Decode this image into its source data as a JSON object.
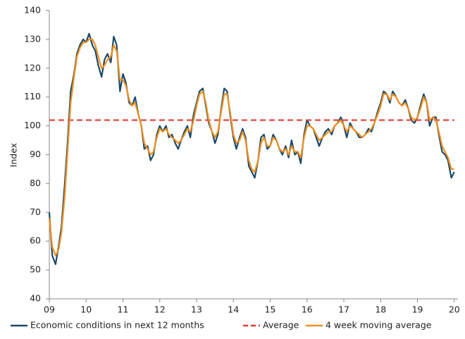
{
  "chart_data": {
    "type": "line",
    "y_label": "Index",
    "x": [
      2009.0,
      2009.08,
      2009.17,
      2009.25,
      2009.33,
      2009.42,
      2009.5,
      2009.58,
      2009.67,
      2009.75,
      2009.83,
      2009.92,
      2010.0,
      2010.08,
      2010.17,
      2010.25,
      2010.33,
      2010.42,
      2010.5,
      2010.58,
      2010.67,
      2010.75,
      2010.83,
      2010.92,
      2011.0,
      2011.08,
      2011.17,
      2011.25,
      2011.33,
      2011.42,
      2011.5,
      2011.58,
      2011.67,
      2011.75,
      2011.83,
      2011.92,
      2012.0,
      2012.08,
      2012.17,
      2012.25,
      2012.33,
      2012.42,
      2012.5,
      2012.58,
      2012.67,
      2012.75,
      2012.83,
      2012.92,
      2013.0,
      2013.08,
      2013.17,
      2013.25,
      2013.33,
      2013.42,
      2013.5,
      2013.58,
      2013.67,
      2013.75,
      2013.83,
      2013.92,
      2014.0,
      2014.08,
      2014.17,
      2014.25,
      2014.33,
      2014.42,
      2014.5,
      2014.58,
      2014.67,
      2014.75,
      2014.83,
      2014.92,
      2015.0,
      2015.08,
      2015.17,
      2015.25,
      2015.33,
      2015.42,
      2015.5,
      2015.58,
      2015.67,
      2015.75,
      2015.83,
      2015.92,
      2016.0,
      2016.08,
      2016.17,
      2016.25,
      2016.33,
      2016.42,
      2016.5,
      2016.58,
      2016.67,
      2016.75,
      2016.83,
      2016.92,
      2017.0,
      2017.08,
      2017.17,
      2017.25,
      2017.33,
      2017.42,
      2017.5,
      2017.58,
      2017.67,
      2017.75,
      2017.83,
      2017.92,
      2018.0,
      2018.08,
      2018.17,
      2018.25,
      2018.33,
      2018.42,
      2018.5,
      2018.58,
      2018.67,
      2018.75,
      2018.83,
      2018.92,
      2019.0,
      2019.08,
      2019.17,
      2019.25,
      2019.33,
      2019.42,
      2019.5,
      2019.58,
      2019.67,
      2019.75,
      2019.83,
      2019.92,
      2020.0
    ],
    "series": [
      {
        "name": "Economic conditions in next 12 months",
        "color": "#1b4a6b",
        "values": [
          70,
          55,
          52,
          58,
          65,
          80,
          95,
          112,
          118,
          125,
          128,
          130,
          129,
          132,
          128,
          126,
          121,
          117,
          123,
          125,
          122,
          131,
          128,
          112,
          118,
          115,
          108,
          107,
          110,
          104,
          100,
          92,
          93,
          88,
          90,
          97,
          100,
          98,
          100,
          96,
          97,
          94,
          92,
          95,
          98,
          100,
          96,
          104,
          108,
          112,
          113,
          107,
          101,
          98,
          94,
          97,
          106,
          113,
          112,
          103,
          96,
          92,
          96,
          99,
          96,
          86,
          84,
          82,
          88,
          96,
          97,
          92,
          93,
          97,
          95,
          92,
          90,
          93,
          89,
          95,
          90,
          91,
          87,
          97,
          102,
          100,
          99,
          96,
          93,
          96,
          98,
          99,
          97,
          100,
          101,
          103,
          100,
          96,
          101,
          99,
          98,
          96,
          96,
          97,
          99,
          98,
          101,
          105,
          108,
          112,
          111,
          108,
          112,
          110,
          108,
          107,
          109,
          106,
          102,
          101,
          103,
          107,
          111,
          108,
          100,
          103,
          103,
          97,
          91,
          90,
          88,
          82,
          84
        ]
      },
      {
        "name": "4 week moving average",
        "color": "#f0901e",
        "values": [
          68,
          58,
          55,
          57,
          63,
          76,
          92,
          108,
          117,
          124,
          127,
          129,
          129,
          130,
          130,
          128,
          124,
          120,
          121,
          123,
          124,
          128,
          126,
          116,
          116,
          114,
          109,
          107,
          108,
          104,
          100,
          94,
          92,
          90,
          91,
          96,
          99,
          98,
          99,
          97,
          96,
          95,
          94,
          95,
          97,
          99,
          98,
          102,
          107,
          111,
          112,
          108,
          102,
          98,
          96,
          98,
          105,
          111,
          111,
          104,
          97,
          94,
          95,
          98,
          95,
          88,
          85,
          84,
          88,
          94,
          96,
          93,
          93,
          96,
          95,
          92,
          91,
          92,
          90,
          93,
          91,
          91,
          89,
          96,
          100,
          100,
          99,
          97,
          95,
          96,
          97,
          98,
          98,
          100,
          101,
          102,
          100,
          98,
          100,
          99,
          98,
          97,
          96,
          97,
          98,
          99,
          101,
          104,
          107,
          111,
          111,
          109,
          111,
          110,
          108,
          107,
          108,
          106,
          103,
          102,
          103,
          106,
          110,
          108,
          102,
          103,
          102,
          98,
          93,
          91,
          89,
          85,
          85
        ]
      }
    ],
    "reference_line": {
      "name": "Average",
      "value": 102,
      "color": "#e03c31",
      "dashed": true
    },
    "xlim": [
      2009,
      2020.1
    ],
    "xticks": [
      {
        "value": 2009,
        "label": "09"
      },
      {
        "value": 2010,
        "label": "10"
      },
      {
        "value": 2011,
        "label": "11"
      },
      {
        "value": 2012,
        "label": "12"
      },
      {
        "value": 2013,
        "label": "13"
      },
      {
        "value": 2014,
        "label": "14"
      },
      {
        "value": 2015,
        "label": "15"
      },
      {
        "value": 2016,
        "label": "16"
      },
      {
        "value": 2017,
        "label": "17"
      },
      {
        "value": 2018,
        "label": "18"
      },
      {
        "value": 2019,
        "label": "19"
      },
      {
        "value": 2020,
        "label": "20"
      }
    ],
    "ylim": [
      40,
      140
    ],
    "yticks": [
      40,
      50,
      60,
      70,
      80,
      90,
      100,
      110,
      120,
      130,
      140
    ],
    "grid": false,
    "legend": "bottom"
  }
}
